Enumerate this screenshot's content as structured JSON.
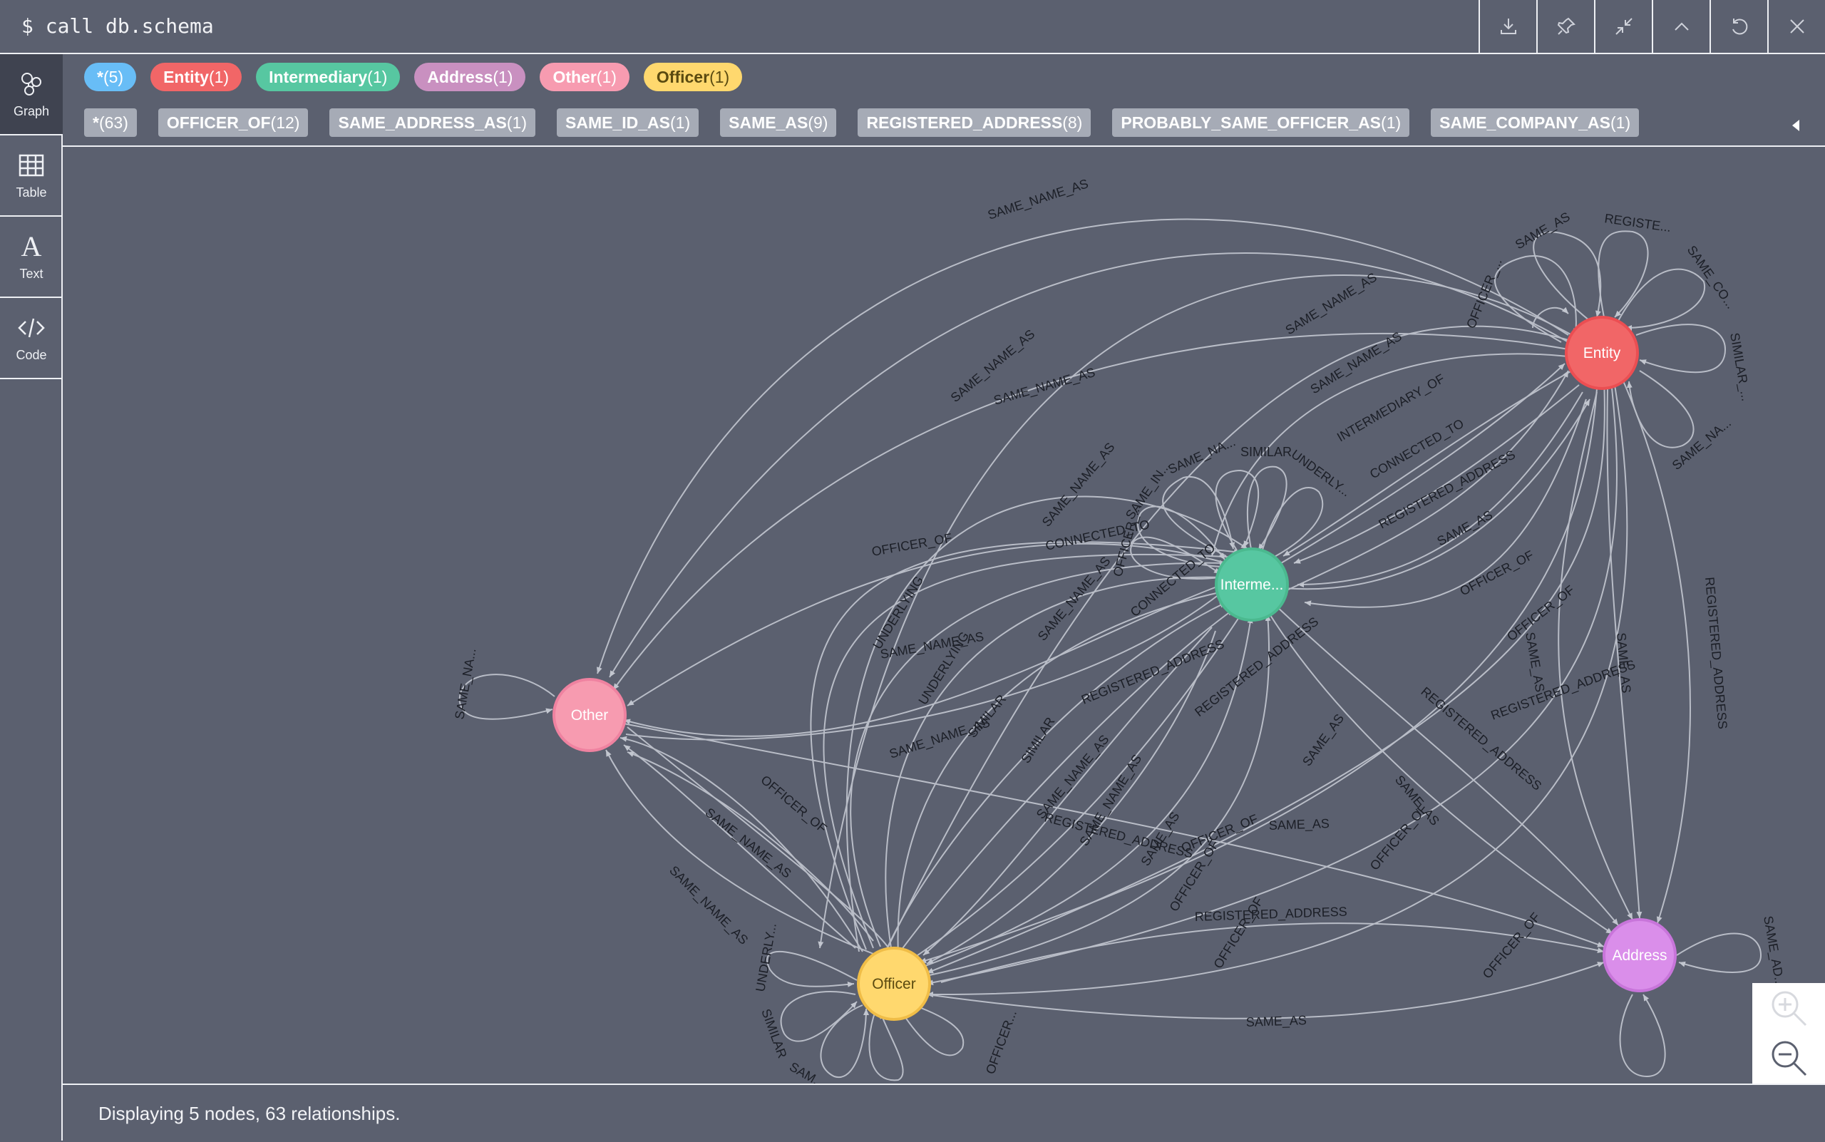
{
  "command": "$ call db.schema",
  "toolbar": {
    "buttons": [
      "download-icon",
      "pin-icon",
      "collapse-icon",
      "chevron-up-icon",
      "refresh-icon",
      "close-icon"
    ]
  },
  "sidebar": {
    "items": [
      {
        "label": "Graph",
        "icon": "graph-icon",
        "active": true
      },
      {
        "label": "Table",
        "icon": "table-icon"
      },
      {
        "label": "Text",
        "icon": "text-icon"
      },
      {
        "label": "Code",
        "icon": "code-icon"
      }
    ]
  },
  "node_labels": [
    {
      "name": "*",
      "count": "(5)",
      "color": "#68bdf6"
    },
    {
      "name": "Entity",
      "count": "(1)",
      "color": "#f16667"
    },
    {
      "name": "Intermediary",
      "count": "(1)",
      "color": "#57c7a1"
    },
    {
      "name": "Address",
      "count": "(1)",
      "color": "#c990c0"
    },
    {
      "name": "Other",
      "count": "(1)",
      "color": "#f79bb0"
    },
    {
      "name": "Officer",
      "count": "(1)",
      "color": "#ffd86e"
    }
  ],
  "relationship_types": [
    {
      "name": "*",
      "count": "(63)"
    },
    {
      "name": "OFFICER_OF",
      "count": "(12)"
    },
    {
      "name": "SAME_ADDRESS_AS",
      "count": "(1)"
    },
    {
      "name": "SAME_ID_AS",
      "count": "(1)"
    },
    {
      "name": "SAME_AS",
      "count": "(9)"
    },
    {
      "name": "REGISTERED_ADDRESS",
      "count": "(8)"
    },
    {
      "name": "PROBABLY_SAME_OFFICER_AS",
      "count": "(1)"
    },
    {
      "name": "SAME_COMPANY_AS",
      "count": "(1)"
    }
  ],
  "graph": {
    "nodes": {
      "entity": {
        "label": "Entity",
        "color": "#f16667",
        "stroke": "#eb4e52"
      },
      "intermediary": {
        "label": "Interme...",
        "color": "#57c7a1",
        "stroke": "#4bb98f"
      },
      "other": {
        "label": "Other",
        "color": "#f79bb0",
        "stroke": "#ef82a0"
      },
      "officer": {
        "label": "Officer",
        "color": "#ffd86e",
        "stroke": "#f0bd47"
      },
      "address": {
        "label": "Address",
        "color": "#da8eea",
        "stroke": "#c875da"
      }
    },
    "edge_labels": {
      "e1": "SAME_NAME_AS",
      "e2": "SAME_NAME_AS",
      "e3": "SAME_NAME_AS",
      "e4": "SAME_NAME_AS",
      "e5": "SAME_NAME_AS",
      "e6": "SAME_AS",
      "e7": "REGISTE...",
      "e8": "SAME_CO...",
      "e9": "SIMILAR_...",
      "e10": "SAME_NA...",
      "e11": "OFFICER_...",
      "e12": "INTERMEDIARY_OF",
      "e13": "CONNECTED_TO",
      "e14": "REGISTERED_ADDRESS",
      "e15": "SAME_AS",
      "e16": "OFFICER_OF",
      "e17": "OFFICER_OF",
      "e18": "SAME_AS",
      "e19": "SAME_AS",
      "e20": "REGISTERED_ADDRESS",
      "e21": "SAME_NAME_AS",
      "e22": "OFFICER_OF",
      "e23": "CONNECTED_TO",
      "e24": "OFFICER_...",
      "e25": "SAME_IN...",
      "e26": "SAME_NA...",
      "e27": "SIMILAR",
      "e28": "UNDERLY...",
      "e29": "CONNECTED_TO",
      "e30": "UNDERLYING",
      "e31": "SAME_NAME_AS",
      "e32": "UNDERLYING",
      "e33": "REGISTERED_ADDRESS",
      "e34": "REGISTERED_ADDRESS",
      "e35": "SAME_NAME_AS",
      "e36": "SIMILAR",
      "e37": "SIMILAR",
      "e38": "SAME_NAME_AS",
      "e39": "SAME_NAME_AS",
      "e40": "SAME_AS",
      "e41": "OFFICER_OF",
      "e42": "REGISTERED_ADDRESS",
      "e43": "SAME_AS",
      "e44": "REGISTERED_ADDRESS",
      "e45": "SAME_AS",
      "e46": "OFFICER_OF",
      "e47": "OFFICER_OF",
      "e48": "OFFICER_OF",
      "e49": "OFFICER_OF",
      "e50": "OFFICER_OF",
      "e51": "SAME_NAME_AS",
      "e52": "SAME_NAME_AS",
      "e53": "SAME_NA...",
      "e54": "UNDERLY...",
      "e55": "SIMILAR",
      "e56": "SAM...",
      "e57": "OFFICER...",
      "e58": "SAME_AS",
      "e59": "SAME_AD...",
      "e60": "REGISTERED_ADDRESS",
      "e61": "SAME_AS",
      "e62": "REGISTERED_ADDRESS",
      "e63": "SAME_NAME_AS"
    }
  },
  "zoom": {
    "in_icon": "zoom-in-icon",
    "out_icon": "zoom-out-icon"
  },
  "status_text": "Displaying 5 nodes, 63 relationships."
}
